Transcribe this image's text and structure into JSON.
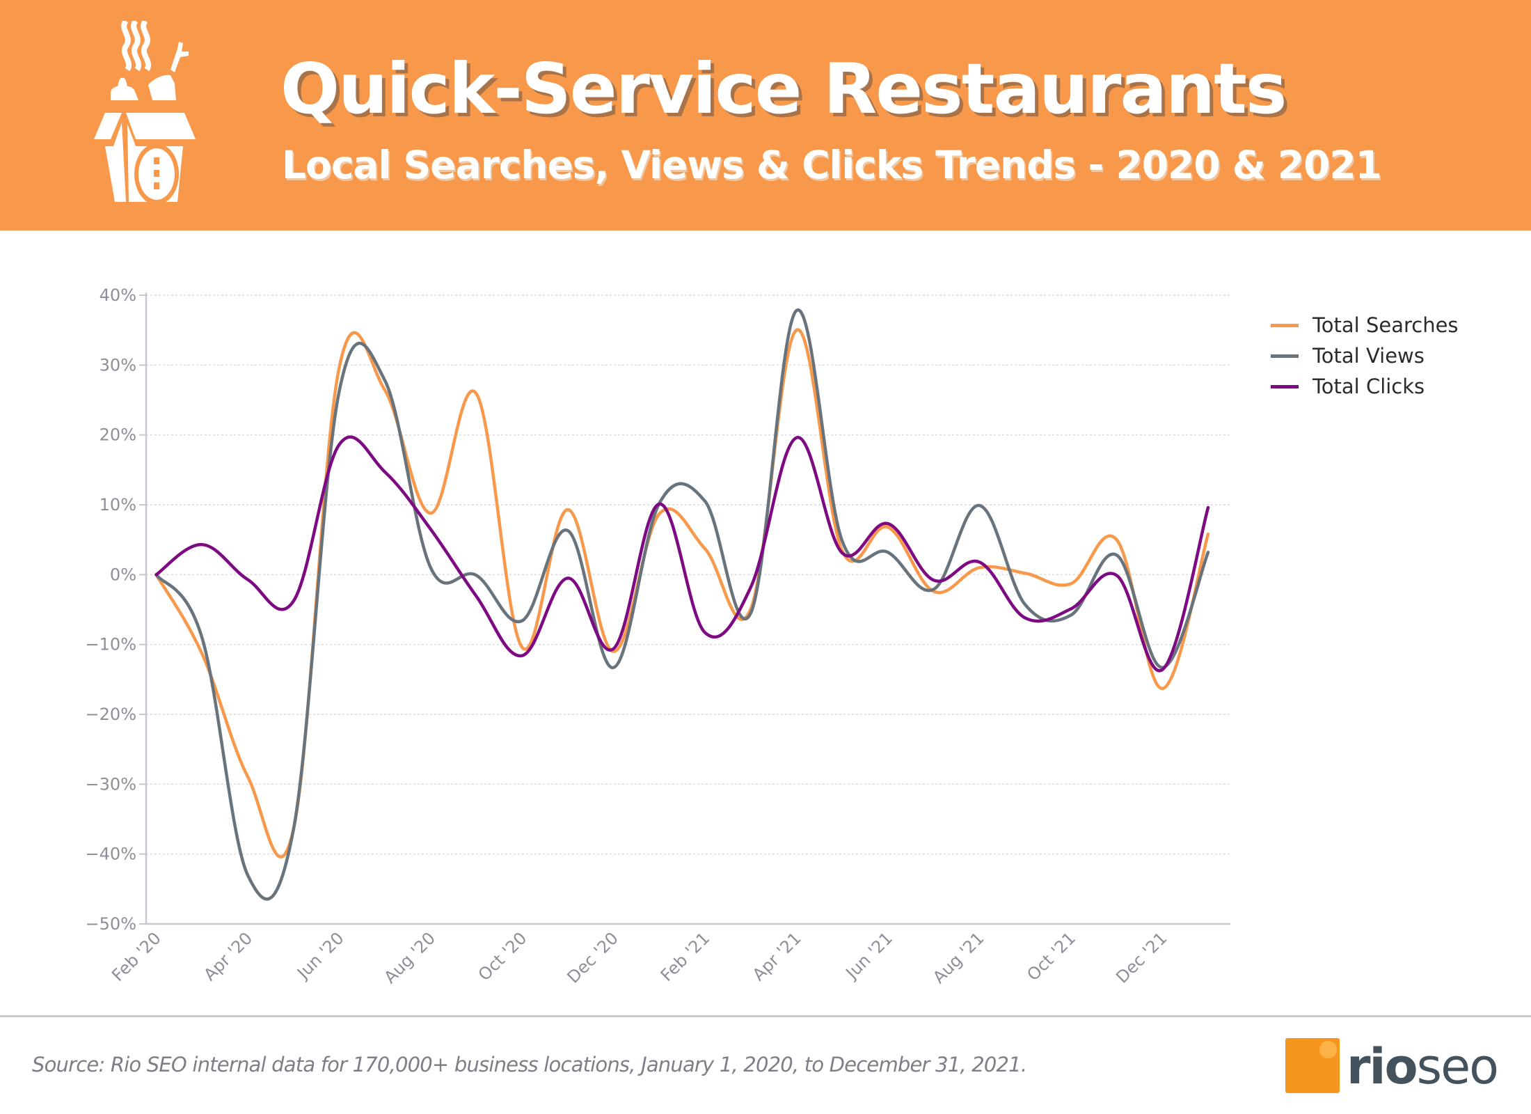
{
  "header": {
    "title": "Quick-Service Restaurants",
    "subtitle": "Local Searches, Views & Clicks Trends - 2020 & 2021",
    "icon": "takeout-box-icon",
    "background_color": "#F7984A"
  },
  "legend": {
    "items": [
      {
        "label": "Total Searches",
        "color": "#F7984A"
      },
      {
        "label": "Total Views",
        "color": "#68737C"
      },
      {
        "label": "Total Clicks",
        "color": "#7D0A83"
      }
    ]
  },
  "footer": {
    "source": "Source: Rio SEO internal data for 170,000+ business locations, January 1, 2020, to December 31, 2021.",
    "logo": {
      "part1": "rio",
      "part2": "seo",
      "square_color": "#F5961F",
      "text_color": "#44525E"
    }
  },
  "chart_data": {
    "type": "line",
    "title": "Quick-Service Restaurants",
    "subtitle": "Local Searches, Views & Clicks Trends - 2020 & 2021",
    "xlabel": "",
    "ylabel": "",
    "ylim": [
      -50,
      40
    ],
    "yticks": [
      40,
      30,
      20,
      10,
      0,
      -10,
      -20,
      -30,
      -40,
      -50
    ],
    "ytick_labels": [
      "40%",
      "30%",
      "20%",
      "10%",
      "0%",
      "−10%",
      "−20%",
      "−30%",
      "−40%",
      "−50%"
    ],
    "grid": true,
    "legend_position": "right",
    "x": [
      "Feb '20",
      "Mar '20",
      "Apr '20",
      "May '20",
      "Jun '20",
      "Jul '20",
      "Aug '20",
      "Sep '20",
      "Oct '20",
      "Nov '20",
      "Dec '20",
      "Jan '21",
      "Feb '21",
      "Mar '21",
      "Apr '21",
      "May '21",
      "Jun '21",
      "Jul '21",
      "Aug '21",
      "Sep '21",
      "Oct '21",
      "Nov '21",
      "Dec '21",
      "Jan '22"
    ],
    "xtick_labels": [
      "Feb '20",
      "Apr '20",
      "Jun '20",
      "Aug '20",
      "Oct '20",
      "Dec '20",
      "Feb '21",
      "Apr '21",
      "Jun '21",
      "Aug '21",
      "Oct '21",
      "Dec '21"
    ],
    "series": [
      {
        "name": "Total Searches",
        "color": "#F7984A",
        "values": [
          0,
          -11.3,
          -28.9,
          -36.5,
          29.6,
          26.4,
          8.8,
          25.9,
          -10.4,
          9.3,
          -11.0,
          8.7,
          3.7,
          -4.9,
          35.0,
          3.4,
          6.8,
          -2.4,
          1.0,
          0.2,
          -1.3,
          5.0,
          -16.3,
          5.8
        ]
      },
      {
        "name": "Total Views",
        "color": "#68737C",
        "values": [
          0,
          -9.0,
          -43.0,
          -36.5,
          26.2,
          27.8,
          1.0,
          -0.1,
          -6.6,
          6.3,
          -13.3,
          10.2,
          10.5,
          -5.5,
          37.8,
          4.8,
          3.2,
          -2.1,
          9.9,
          -4.3,
          -5.8,
          2.8,
          -13.3,
          3.2
        ]
      },
      {
        "name": "Total Clicks",
        "color": "#7D0A83",
        "values": [
          0,
          4.3,
          -0.7,
          -3.8,
          18.6,
          14.7,
          6.5,
          -3.1,
          -11.6,
          -0.5,
          -10.6,
          10.1,
          -8.3,
          -1.8,
          19.6,
          3.1,
          7.3,
          -0.8,
          1.8,
          -6.2,
          -4.9,
          -0.1,
          -13.6,
          9.6
        ]
      }
    ]
  }
}
